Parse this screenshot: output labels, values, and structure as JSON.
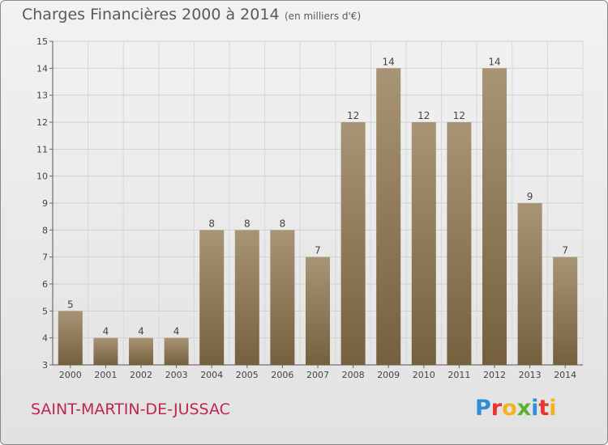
{
  "header": {
    "title": "Charges Financières 2000 à 2014",
    "subtitle": "(en milliers d'€)"
  },
  "footer": {
    "commune": "SAINT-MARTIN-DE-JUSSAC",
    "logo_letters": [
      {
        "char": "P",
        "color": "#2f8fd6"
      },
      {
        "char": "r",
        "color": "#e8362f"
      },
      {
        "char": "o",
        "color": "#f2b41c"
      },
      {
        "char": "x",
        "color": "#5cb030"
      },
      {
        "char": "i",
        "color": "#2f8fd6"
      },
      {
        "char": "t",
        "color": "#e8362f"
      },
      {
        "char": "i",
        "color": "#f2b41c"
      }
    ]
  },
  "chart_data": {
    "type": "bar",
    "title": "Charges Financières 2000 à 2014",
    "subtitle": "(en milliers d'€)",
    "categories": [
      "2000",
      "2001",
      "2002",
      "2003",
      "2004",
      "2005",
      "2006",
      "2007",
      "2008",
      "2009",
      "2010",
      "2011",
      "2012",
      "2013",
      "2014"
    ],
    "values": [
      5,
      4,
      4,
      4,
      8,
      8,
      8,
      7,
      12,
      14,
      12,
      12,
      14,
      9,
      7
    ],
    "ylim": [
      3,
      15
    ],
    "yticks": [
      3,
      4,
      5,
      6,
      7,
      8,
      9,
      10,
      11,
      12,
      13,
      14,
      15
    ],
    "grid": true,
    "bar_color_top": "#a89575",
    "bar_color_bottom": "#75603e"
  }
}
